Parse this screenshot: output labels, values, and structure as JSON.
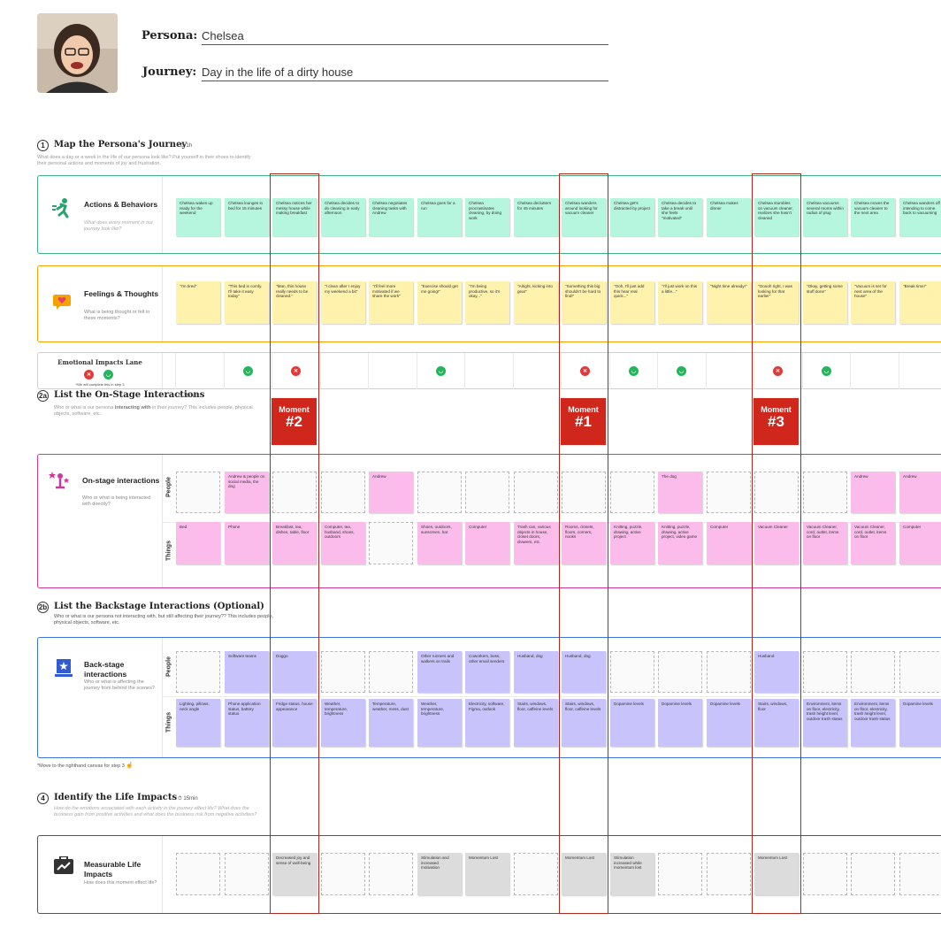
{
  "persona": {
    "label": "Persona:",
    "name": "Chelsea"
  },
  "journey": {
    "label": "Journey:",
    "name": "Day in the life of a dirty house"
  },
  "sections": {
    "s1": {
      "num": "1",
      "title": "Map the Persona's Journey",
      "time": "1h",
      "desc": "What does a day or a week in the life of our persona look like? Put yourself in their shoes to identify their personal actions and moments of joy and frustration."
    },
    "s2a": {
      "num": "2a",
      "title": "List the On-Stage Interactions",
      "time": "15min",
      "desc_prefix": "Who or what is our persona ",
      "desc_em": "interacting with",
      "desc_suffix": " in their journey? This includes people, physical objects, software, etc."
    },
    "s2b": {
      "num": "2b",
      "title": "List the Backstage Interactions (Optional)",
      "desc": "Who or what is our persona not interacting with, but still affecting their journey?? This includes people, physical objects, software, etc."
    },
    "s4": {
      "num": "4",
      "title": "Identify the Life Impacts",
      "time": "15min",
      "desc": "How do the emotions associated with each activity in the journey affect life? What does the business gain from positive activities and what does the business risk from negative activities?"
    }
  },
  "lanes": {
    "actions": {
      "title": "Actions & Behaviors",
      "sub": "What does every moment in our journey look like?"
    },
    "feelings": {
      "title": "Feelings & Thoughts",
      "sub": "What is being thought or felt in these moments?"
    },
    "emotional": {
      "title": "Emotional Impacts Lane",
      "note": "*We will complete this in step 3"
    },
    "onstage": {
      "title": "On-stage interactions",
      "sub": "Who or what is being interacted with directly?"
    },
    "backstage": {
      "title": "Back-stage interactions",
      "sub": "Who or what is affecting the journey from behind the scenes?"
    },
    "life": {
      "title": "Measurable Life Impacts",
      "sub": "How does this moment effect life?"
    }
  },
  "row_labels": {
    "people": "People",
    "things": "Things"
  },
  "move_note": "*Move to the righthand canvas for step 3",
  "moments": [
    {
      "label": "Moment",
      "num": "#2"
    },
    {
      "label": "Moment",
      "num": "#1"
    },
    {
      "label": "Moment",
      "num": "#3"
    }
  ],
  "actions": [
    "Chelsea wakes up ready for the weekend",
    "Chelsea lounges in bed for 15 minutes",
    "Chelsea notices her messy house while making breakfast",
    "Chelsea decides to do cleaning in early afternoon",
    "Chelsea negotiates cleaning tasks with Andrew",
    "Chelsea goes for a run",
    "Chelsea procrastinates cleaning, by doing work",
    "Chelsea declutters for 45 minutes",
    "Chelsea wanders around looking for vacuum cleaner",
    "Chelsea get's distracted by project",
    "Chelsea decides to take a break until she feels \"motivated\"",
    "Chelsea makes dinner",
    "Chelsea stumbles on vacuum cleaner, realizes she hasn't cleaned",
    "Chelsea vacuums several rooms within radius of plug",
    "Chelsea moves the vacuum cleaner to the next area",
    "Chelsea wanders off intending to come back to vacuuming"
  ],
  "feelings": [
    "\"I'm tired\"",
    "\"This bed is comfy. I'll take it easy today\"",
    "\"Man, this house really needs to be cleaned.\"",
    "\"I clean after I enjoy my weekend a bit\"",
    "\"I'll feel more motivated if we share the work\"",
    "\"Exercise should get me going!\"",
    "\"I'm being productive, so it's okay...\"",
    "\"Alright, kicking into gear\"",
    "\"Something this big shouldn't be hard to find!\"",
    "\"Ooh, I'll just add this hear real quick...\"",
    "\"I'll just work on this a little...\"",
    "\"Night time already!\"",
    "\"Ooooh right, I was looking for that earlier\"",
    "\"Okay, getting some stuff done\"",
    "\"Vacuum is set for next area of the house\"",
    "\"Break time!\""
  ],
  "emotions": [
    "",
    "happy",
    "sad",
    "",
    "",
    "happy",
    "",
    "",
    "sad",
    "happy",
    "happy",
    "",
    "sad",
    "happy",
    "",
    ""
  ],
  "onstage_people": [
    "",
    "Andrew & people on social media, the dog",
    "",
    "",
    "Andrew",
    "",
    "",
    "",
    "",
    "",
    "The dog",
    "",
    "",
    "",
    "Andrew",
    "Andrew"
  ],
  "onstage_things": [
    "Bed",
    "Phone",
    "Breakfast, tea, dishes, table, floor",
    "Computer, tea, husband, shoes, outdoors",
    "",
    "Shoes, outdoors, sunscreen, hat",
    "Computer",
    "Trash can, various objects in house, closet doors, drawers, etc.",
    "Rooms, closets, floors, corners, nooks",
    "Knitting, puzzle, drawing, active project",
    "Knitting, puzzle, drawing, active project, video game",
    "Computer",
    "Vacuum Cleaner",
    "Vacuum Cleaner, cord, outlet, items on floor",
    "Vacuum Cleaner, cord, outlet, items on floor",
    "Computer"
  ],
  "backstage_people": [
    "",
    "Software teams",
    "Doggo",
    "",
    "",
    "Other runners and walkers on trails",
    "Coworkers, boss, other email senders",
    "Husband, dog",
    "Husband, dog",
    "",
    "",
    "",
    "Husband",
    "",
    "",
    ""
  ],
  "backstage_things": [
    "Lighting, pillows, neck angle",
    "Phone application status, battery status",
    "Fridge status, house appearance",
    "Weather, temperature, brightness",
    "Temperature, weather, mess, dust",
    "Weather, temperature, brightness",
    "Electricity, software, Figma, outlook",
    "Stairs, windows, floor, caffeine levels",
    "Stairs, windows, floor, caffeine levels",
    "Dopamine levels",
    "Dopamine levels",
    "Dopamine levels",
    "Stairs, windows, floor",
    "Environment, items on floor, electricity, trash height level, outdoor trash status",
    "Environment, items on floor, electricity, trash height level, outdoor trash status",
    "Dopamine levels"
  ],
  "life_impacts": [
    "",
    "",
    "Decreased joy and sense of well-being",
    "",
    "",
    "Stimulation and increased motivation",
    "Momentum Lost",
    "",
    "Momentum Lost",
    "Stimulation increased while momentum lost",
    "",
    "",
    "Momentum Lost",
    "",
    "",
    ""
  ],
  "colors": {
    "actions": "#b6f5de",
    "feelings": "#fff2ad",
    "onstage": "#fbbcec",
    "backstage": "#c8c3fb",
    "life": "#dcdcdc",
    "lane_actions": "#3fb27f",
    "lane_feelings": "#f0a500",
    "lane_onstage": "#d1369b",
    "lane_backstage": "#3b74d8",
    "lane_life": "#555555",
    "moment": "#d0271d"
  }
}
